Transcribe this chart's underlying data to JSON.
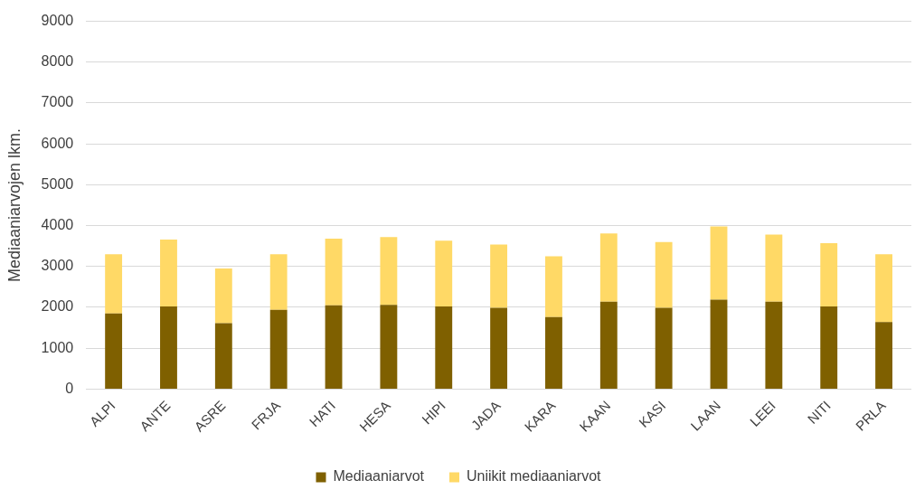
{
  "chart_data": {
    "type": "bar",
    "stacked": true,
    "ylabel": "Mediaaniarvojen lkm.",
    "categories": [
      "ALPI",
      "ANTE",
      "ASRE",
      "FRJA",
      "HATI",
      "HESA",
      "HIPI",
      "JADA",
      "KARA",
      "KAAN",
      "KASI",
      "LAAN",
      "LEEI",
      "NITI",
      "PRLA"
    ],
    "series": [
      {
        "name": "Mediaaniarvot",
        "color": "#7f6000",
        "values": [
          1850,
          2020,
          1610,
          1940,
          2050,
          2060,
          2020,
          1990,
          1760,
          2140,
          1990,
          2190,
          2140,
          2020,
          1640
        ]
      },
      {
        "name": "Uniikit mediaaniarvot",
        "color": "#ffd966",
        "values": [
          1450,
          1640,
          1340,
          1360,
          1630,
          1660,
          1610,
          1550,
          1490,
          1670,
          1610,
          1790,
          1640,
          1550,
          1660
        ]
      }
    ],
    "ylim": [
      0,
      9000
    ],
    "yticks": [
      0,
      1000,
      2000,
      3000,
      4000,
      5000,
      6000,
      7000,
      8000,
      9000
    ],
    "grid": "y",
    "legend": "bottom"
  }
}
